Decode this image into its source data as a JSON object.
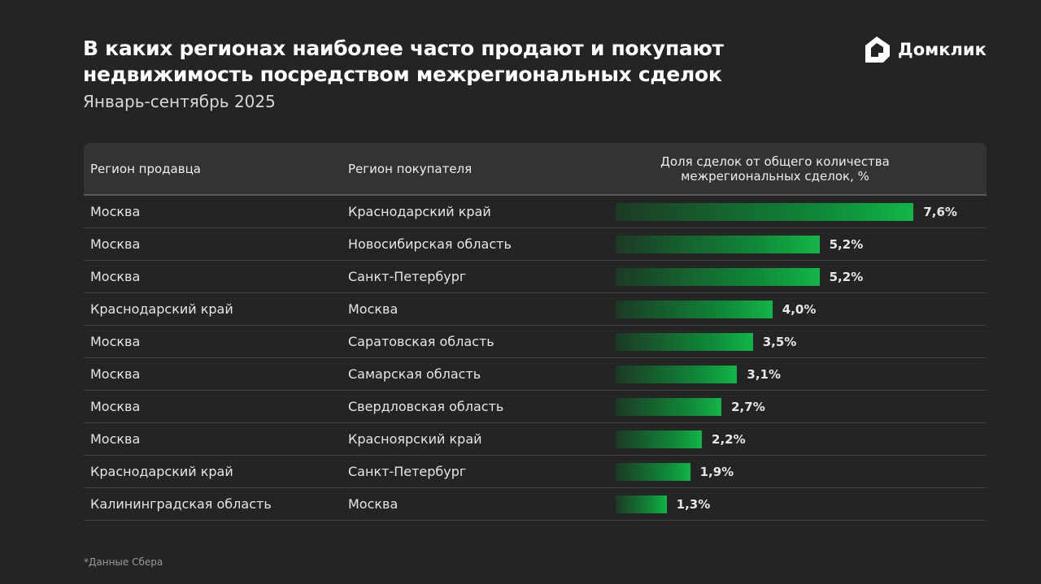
{
  "header": {
    "title_line1": "В каких регионах наиболее часто продают и покупают",
    "title_line2": "недвижимость посредством межрегиональных сделок",
    "subtitle": "Январь-сентябрь 2025"
  },
  "logo": {
    "text": "Домклик",
    "icon": "house-logo-icon"
  },
  "colors": {
    "background": "#242424",
    "header_row": "#333333",
    "bar_start": "#1c3a24",
    "bar_end": "#12b548"
  },
  "chart_data": {
    "type": "table",
    "columns": [
      "Регион продавца",
      "Регион покупателя",
      "Доля сделок от общего количества межрегиональных сделок, %"
    ],
    "column3_line1": "Доля сделок от общего количества",
    "column3_line2": "межрегиональных сделок, %",
    "rows": [
      {
        "seller": "Москва",
        "buyer": "Краснодарский край",
        "value": 7.6,
        "label": "7,6%"
      },
      {
        "seller": "Москва",
        "buyer": "Новосибирская область",
        "value": 5.2,
        "label": "5,2%"
      },
      {
        "seller": "Москва",
        "buyer": "Санкт-Петербург",
        "value": 5.2,
        "label": "5,2%"
      },
      {
        "seller": "Краснодарский край",
        "buyer": "Москва",
        "value": 4.0,
        "label": "4,0%"
      },
      {
        "seller": "Москва",
        "buyer": "Саратовская область",
        "value": 3.5,
        "label": "3,5%"
      },
      {
        "seller": "Москва",
        "buyer": "Самарская область",
        "value": 3.1,
        "label": "3,1%"
      },
      {
        "seller": "Москва",
        "buyer": "Свердловская область",
        "value": 2.7,
        "label": "2,7%"
      },
      {
        "seller": "Москва",
        "buyer": "Красноярский край",
        "value": 2.2,
        "label": "2,2%"
      },
      {
        "seller": "Краснодарский край",
        "buyer": "Санкт-Петербург",
        "value": 1.9,
        "label": "1,9%"
      },
      {
        "seller": "Калининградская область",
        "buyer": "Москва",
        "value": 1.3,
        "label": "1,3%"
      }
    ]
  },
  "footnote": "*Данные Сбера"
}
